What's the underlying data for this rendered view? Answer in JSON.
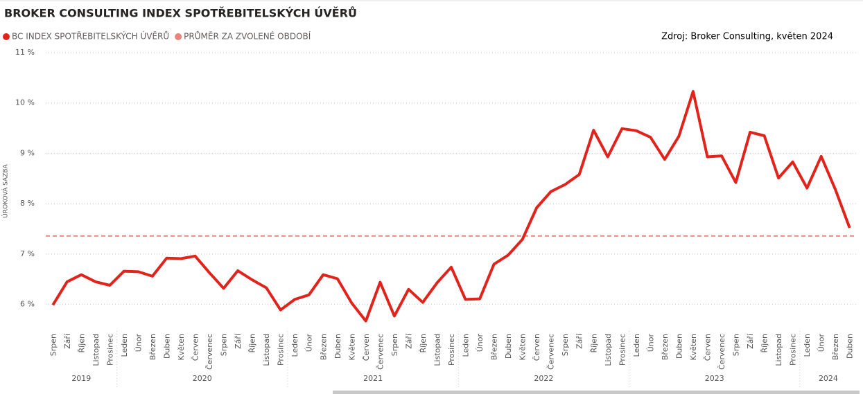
{
  "chart_data": {
    "type": "line",
    "title": "BROKER CONSULTING INDEX SPOTŘEBITELSKÝCH ÚVĚRŮ",
    "source": "Zdroj: Broker Consulting, květen 2024",
    "y_label": "ÚROKOVÁ SAZBA",
    "categories": [
      "Srpen",
      "Září",
      "Říjen",
      "Listopad",
      "Prosinec",
      "Leden",
      "Únor",
      "Březen",
      "Duben",
      "Květen",
      "Červen",
      "Červenec",
      "Srpen",
      "Září",
      "Říjen",
      "Listopad",
      "Prosinec",
      "Leden",
      "Únor",
      "Březen",
      "Duben",
      "Květen",
      "Červen",
      "Červenec",
      "Srpen",
      "Září",
      "Říjen",
      "Listopad",
      "Prosinec",
      "Leden",
      "Únor",
      "Březen",
      "Duben",
      "Květen",
      "Červen",
      "Červenec",
      "Srpen",
      "Září",
      "Říjen",
      "Listopad",
      "Prosinec",
      "Leden",
      "Únor",
      "Březen",
      "Duben",
      "Květen",
      "Červen",
      "Červenec",
      "Srpen",
      "Září",
      "Říjen",
      "Listopad",
      "Prosinec",
      "Leden",
      "Únor",
      "Březen",
      "Duben"
    ],
    "category_groups": [
      {
        "name": "2019",
        "span": 5
      },
      {
        "name": "2020",
        "span": 12
      },
      {
        "name": "2021",
        "span": 12
      },
      {
        "name": "2022",
        "span": 12
      },
      {
        "name": "2023",
        "span": 12
      },
      {
        "name": "2024",
        "span": 4
      }
    ],
    "series": [
      {
        "name": "BC INDEX SPOTŘEBITELSKÝCH ÚVĚRŮ",
        "color": "#e0241c",
        "values": [
          5.99,
          6.45,
          6.59,
          6.45,
          6.38,
          6.66,
          6.65,
          6.56,
          6.92,
          6.91,
          6.96,
          6.63,
          6.32,
          6.67,
          6.49,
          6.33,
          5.89,
          6.1,
          6.19,
          6.59,
          6.51,
          6.03,
          5.67,
          6.44,
          5.77,
          6.3,
          6.04,
          6.43,
          6.74,
          6.1,
          6.11,
          6.8,
          6.98,
          7.29,
          7.92,
          8.24,
          8.38,
          8.58,
          9.46,
          8.93,
          9.49,
          9.45,
          9.32,
          8.88,
          9.34,
          10.23,
          8.93,
          8.95,
          8.42,
          9.42,
          9.35,
          8.51,
          8.83,
          8.31,
          8.94,
          8.28,
          7.52
        ]
      }
    ],
    "reference_line": {
      "name": "PRŮMĚR ZA ZVOLENÉ OBDOBÍ",
      "color": "#e8857a",
      "value": 7.36
    },
    "ylim": [
      5.5,
      11
    ],
    "yticks": [
      {
        "value": 6,
        "label": "6 %"
      },
      {
        "value": 7,
        "label": "7 %"
      },
      {
        "value": 8,
        "label": "8 %"
      },
      {
        "value": 9,
        "label": "9 %"
      },
      {
        "value": 10,
        "label": "10 %"
      },
      {
        "value": 11,
        "label": "11 %"
      }
    ],
    "grid": true
  }
}
